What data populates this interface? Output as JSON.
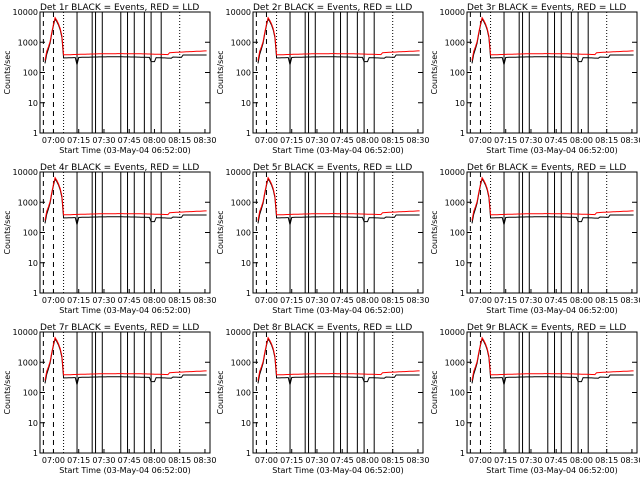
{
  "chart_data": [
    {
      "type": "line",
      "title": "Det 1r BLACK = Events, RED = LLD",
      "xlabel": "Start Time (03-May-04 06:52:00)",
      "ylabel": "Counts/sec",
      "x_ticks": [
        "07:00",
        "07:15",
        "07:30",
        "07:45",
        "08:00",
        "08:15",
        "08:30"
      ],
      "y_ticks": [
        "1",
        "10",
        "100",
        "1000",
        "10000"
      ],
      "ylim": [
        1,
        10000
      ],
      "y_scale": "log",
      "series": [
        {
          "color": "#000000",
          "peak": 6000,
          "baseline": 300
        },
        {
          "color": "#ff0000",
          "peak": 6500,
          "baseline": 380
        }
      ]
    },
    {
      "type": "line",
      "title": "Det 2r BLACK = Events, RED = LLD",
      "xlabel": "Start Time (03-May-04 06:52:00)",
      "ylabel": "Counts/sec",
      "x_ticks": [
        "07:00",
        "07:15",
        "07:30",
        "07:45",
        "08:00",
        "08:15",
        "08:30"
      ],
      "y_ticks": [
        "1",
        "10",
        "100",
        "1000",
        "10000"
      ],
      "ylim": [
        1,
        10000
      ],
      "y_scale": "log",
      "series": [
        {
          "color": "#000000",
          "peak": 6000,
          "baseline": 300
        },
        {
          "color": "#ff0000",
          "peak": 6500,
          "baseline": 380
        }
      ]
    },
    {
      "type": "line",
      "title": "Det 3r BLACK = Events, RED = LLD",
      "xlabel": "Start Time (03-May-04 06:52:00)",
      "ylabel": "Counts/sec",
      "x_ticks": [
        "07:00",
        "07:15",
        "07:30",
        "07:45",
        "08:00",
        "08:15",
        "08:30"
      ],
      "y_ticks": [
        "1",
        "10",
        "100",
        "1000",
        "10000"
      ],
      "ylim": [
        1,
        10000
      ],
      "y_scale": "log",
      "series": [
        {
          "color": "#000000",
          "peak": 6000,
          "baseline": 300
        },
        {
          "color": "#ff0000",
          "peak": 6500,
          "baseline": 380
        }
      ]
    },
    {
      "type": "line",
      "title": "Det 4r BLACK = Events, RED = LLD",
      "xlabel": "Start Time (03-May-04 06:52:00)",
      "ylabel": "Counts/sec",
      "x_ticks": [
        "07:00",
        "07:15",
        "07:30",
        "07:45",
        "08:00",
        "08:15",
        "08:30"
      ],
      "y_ticks": [
        "1",
        "10",
        "100",
        "1000",
        "10000"
      ],
      "ylim": [
        1,
        10000
      ],
      "y_scale": "log",
      "series": [
        {
          "color": "#000000",
          "peak": 6000,
          "baseline": 300
        },
        {
          "color": "#ff0000",
          "peak": 6500,
          "baseline": 380
        }
      ]
    },
    {
      "type": "line",
      "title": "Det 5r BLACK = Events, RED = LLD",
      "xlabel": "Start Time (03-May-04 06:52:00)",
      "ylabel": "Counts/sec",
      "x_ticks": [
        "07:00",
        "07:15",
        "07:30",
        "07:45",
        "08:00",
        "08:15",
        "08:30"
      ],
      "y_ticks": [
        "1",
        "10",
        "100",
        "1000",
        "10000"
      ],
      "ylim": [
        1,
        10000
      ],
      "y_scale": "log",
      "series": [
        {
          "color": "#000000",
          "peak": 6000,
          "baseline": 300
        },
        {
          "color": "#ff0000",
          "peak": 6500,
          "baseline": 380
        }
      ]
    },
    {
      "type": "line",
      "title": "Det 6r BLACK = Events, RED = LLD",
      "xlabel": "Start Time (03-May-04 06:52:00)",
      "ylabel": "Counts/sec",
      "x_ticks": [
        "07:00",
        "07:15",
        "07:30",
        "07:45",
        "08:00",
        "08:15",
        "08:30"
      ],
      "y_ticks": [
        "1",
        "10",
        "100",
        "1000",
        "10000"
      ],
      "ylim": [
        1,
        10000
      ],
      "y_scale": "log",
      "series": [
        {
          "color": "#000000",
          "peak": 6000,
          "baseline": 300
        },
        {
          "color": "#ff0000",
          "peak": 6500,
          "baseline": 380
        }
      ]
    },
    {
      "type": "line",
      "title": "Det 7r BLACK = Events, RED = LLD",
      "xlabel": "Start Time (03-May-04 06:52:00)",
      "ylabel": "Counts/sec",
      "x_ticks": [
        "07:00",
        "07:15",
        "07:30",
        "07:45",
        "08:00",
        "08:15",
        "08:30"
      ],
      "y_ticks": [
        "1",
        "10",
        "100",
        "1000",
        "10000"
      ],
      "ylim": [
        1,
        10000
      ],
      "y_scale": "log",
      "series": [
        {
          "color": "#000000",
          "peak": 6000,
          "baseline": 300
        },
        {
          "color": "#ff0000",
          "peak": 6500,
          "baseline": 380
        }
      ]
    },
    {
      "type": "line",
      "title": "Det 8r BLACK = Events, RED = LLD",
      "xlabel": "Start Time (03-May-04 06:52:00)",
      "ylabel": "Counts/sec",
      "x_ticks": [
        "07:00",
        "07:15",
        "07:30",
        "07:45",
        "08:00",
        "08:15",
        "08:30"
      ],
      "y_ticks": [
        "1",
        "10",
        "100",
        "1000",
        "10000"
      ],
      "ylim": [
        1,
        10000
      ],
      "y_scale": "log",
      "series": [
        {
          "color": "#000000",
          "peak": 6000,
          "baseline": 300
        },
        {
          "color": "#ff0000",
          "peak": 6500,
          "baseline": 380
        }
      ]
    },
    {
      "type": "line",
      "title": "Det 9r BLACK = Events, RED = LLD",
      "xlabel": "Start Time (03-May-04 06:52:00)",
      "ylabel": "Counts/sec",
      "x_ticks": [
        "07:00",
        "07:15",
        "07:30",
        "07:45",
        "08:00",
        "08:15",
        "08:30"
      ],
      "y_ticks": [
        "1",
        "10",
        "100",
        "1000",
        "10000"
      ],
      "ylim": [
        1,
        10000
      ],
      "y_scale": "log",
      "series": [
        {
          "color": "#000000",
          "peak": 6000,
          "baseline": 300
        },
        {
          "color": "#ff0000",
          "peak": 6500,
          "baseline": 380
        }
      ]
    }
  ]
}
